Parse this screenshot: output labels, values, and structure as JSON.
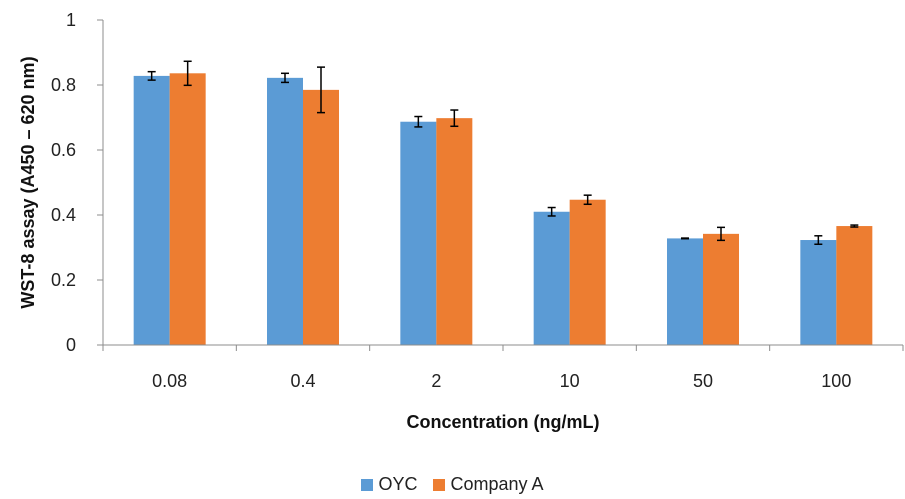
{
  "chart_data": {
    "type": "bar",
    "title": "",
    "xlabel": "Concentration (ng/mL)",
    "ylabel": "WST-8 assay (A450 – 620 nm)",
    "categories": [
      "0.08",
      "0.4",
      "2",
      "10",
      "50",
      "100"
    ],
    "ylim": [
      0,
      1
    ],
    "yticks": [
      "0",
      "0.2",
      "0.4",
      "0.6",
      "0.8",
      "1"
    ],
    "grid": false,
    "legend_position": "bottom",
    "series": [
      {
        "name": "OYC",
        "color": "#5B9BD5",
        "values": [
          0.828,
          0.822,
          0.687,
          0.41,
          0.328,
          0.323
        ],
        "errors": [
          0.013,
          0.014,
          0.016,
          0.013,
          0.001,
          0.013
        ]
      },
      {
        "name": "Company A",
        "color": "#ED7D31",
        "values": [
          0.836,
          0.785,
          0.698,
          0.447,
          0.342,
          0.366
        ],
        "errors": [
          0.037,
          0.07,
          0.025,
          0.014,
          0.02,
          0.003
        ]
      }
    ]
  }
}
